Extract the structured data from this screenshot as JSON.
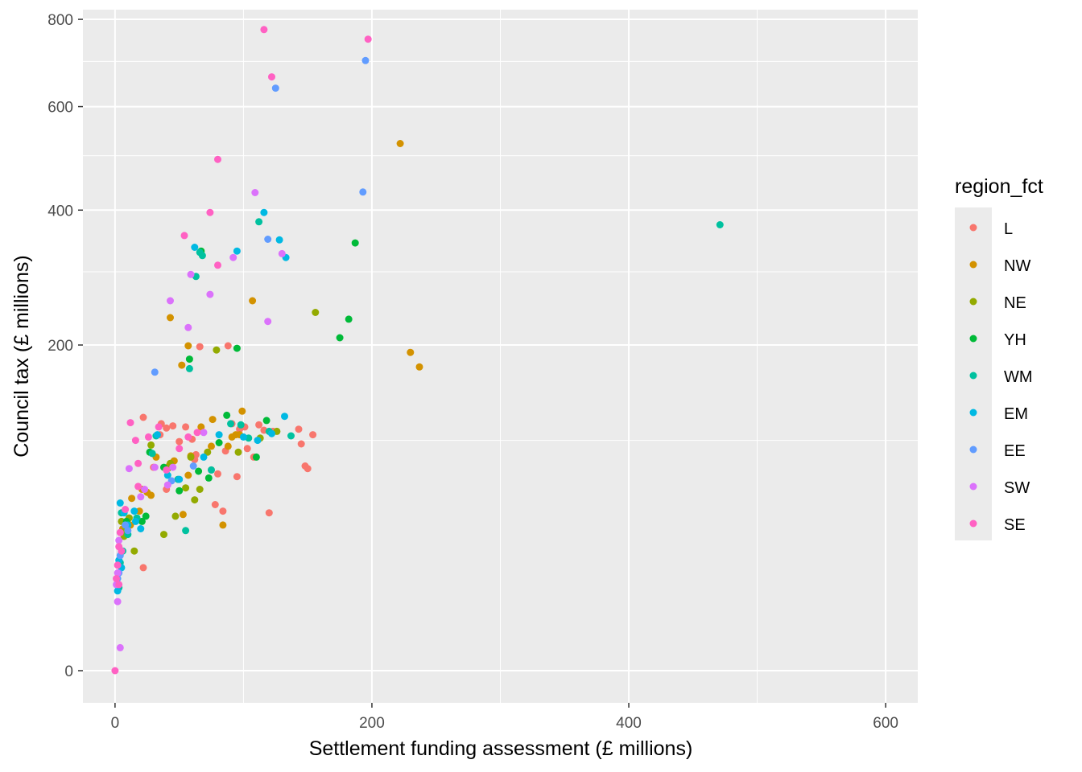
{
  "chart_data": {
    "type": "scatter",
    "title": "",
    "xlabel": "Settlement funding assessment (£ millions)",
    "ylabel": "Council tax (£ millions)",
    "x_scale": "linear",
    "y_scale": "sqrt",
    "xlim": [
      -25,
      625
    ],
    "ylim": [
      0,
      824
    ],
    "x_ticks": [
      0,
      200,
      400,
      600
    ],
    "x_tick_labels": [
      "0",
      "200",
      "400",
      "600"
    ],
    "y_ticks": [
      0,
      200,
      400,
      600,
      800
    ],
    "y_tick_labels": [
      "0",
      "200",
      "400",
      "600",
      "800"
    ],
    "grid": true,
    "panel_background": "#EBEBEB",
    "legend": {
      "title": "region_fct",
      "placement": "right",
      "items": [
        {
          "key": "L",
          "color": "#F8766D"
        },
        {
          "key": "NW",
          "color": "#D39200"
        },
        {
          "key": "NE",
          "color": "#93AA00"
        },
        {
          "key": "YH",
          "color": "#00BA38"
        },
        {
          "key": "WM",
          "color": "#00C19F"
        },
        {
          "key": "EM",
          "color": "#00B9E3"
        },
        {
          "key": "EE",
          "color": "#619CFF"
        },
        {
          "key": "SW",
          "color": "#DB72FB"
        },
        {
          "key": "SE",
          "color": "#FF61C3"
        }
      ]
    },
    "series": [
      {
        "name": "L",
        "points": [
          [
            22,
            121
          ],
          [
            36,
            115
          ],
          [
            40,
            111
          ],
          [
            45,
            113
          ],
          [
            55,
            112
          ],
          [
            60,
            101
          ],
          [
            66,
            198
          ],
          [
            88,
            199
          ],
          [
            91,
            115
          ],
          [
            97,
            110
          ],
          [
            101,
            112
          ],
          [
            112,
            114
          ],
          [
            116,
            109
          ],
          [
            120,
            47
          ],
          [
            123,
            108
          ],
          [
            143,
            110
          ],
          [
            145,
            97
          ],
          [
            148,
            79
          ],
          [
            150,
            77
          ],
          [
            154,
            105
          ],
          [
            35,
            105
          ],
          [
            50,
            99
          ],
          [
            63,
            88
          ],
          [
            75,
            76
          ],
          [
            80,
            73
          ],
          [
            95,
            71
          ],
          [
            86,
            91
          ],
          [
            103,
            93
          ],
          [
            108,
            86
          ],
          [
            22,
            20
          ],
          [
            30,
            78
          ],
          [
            40,
            62
          ],
          [
            62,
            84
          ],
          [
            78,
            52
          ],
          [
            84,
            48
          ]
        ]
      },
      {
        "name": "NW",
        "points": [
          [
            43,
            235
          ],
          [
            52,
            176
          ],
          [
            57,
            199
          ],
          [
            76,
            119
          ],
          [
            91,
            103
          ],
          [
            94,
            105
          ],
          [
            99,
            127
          ],
          [
            107,
            258
          ],
          [
            222,
            524
          ],
          [
            230,
            191
          ],
          [
            237,
            174
          ],
          [
            25,
            60
          ],
          [
            32,
            86
          ],
          [
            42,
            79
          ],
          [
            46,
            83
          ],
          [
            53,
            46
          ],
          [
            57,
            72
          ],
          [
            59,
            87
          ],
          [
            67,
            112
          ],
          [
            75,
            95
          ],
          [
            84,
            40
          ],
          [
            88,
            95
          ],
          [
            97,
            105
          ],
          [
            13,
            56
          ],
          [
            19,
            48
          ],
          [
            12,
            40
          ],
          [
            9,
            42
          ],
          [
            6,
            38
          ],
          [
            21,
            62
          ],
          [
            28,
            58
          ]
        ]
      },
      {
        "name": "NE",
        "points": [
          [
            38,
            35
          ],
          [
            43,
            81
          ],
          [
            59,
            86
          ],
          [
            72,
            90
          ],
          [
            79,
            194
          ],
          [
            96,
            90
          ],
          [
            113,
            102
          ],
          [
            126,
            108
          ],
          [
            156,
            242
          ],
          [
            28,
            96
          ],
          [
            41,
            77
          ],
          [
            47,
            45
          ],
          [
            55,
            63
          ],
          [
            62,
            55
          ],
          [
            66,
            62
          ],
          [
            8,
            37
          ],
          [
            15,
            27
          ],
          [
            11,
            44
          ],
          [
            7,
            34
          ],
          [
            5,
            42
          ]
        ]
      },
      {
        "name": "YH",
        "points": [
          [
            27,
            90
          ],
          [
            38,
            78
          ],
          [
            50,
            61
          ],
          [
            58,
            183
          ],
          [
            67,
            332
          ],
          [
            81,
            98
          ],
          [
            87,
            123
          ],
          [
            95,
            196
          ],
          [
            110,
            86
          ],
          [
            118,
            118
          ],
          [
            175,
            209
          ],
          [
            182,
            233
          ],
          [
            187,
            345
          ],
          [
            65,
            75
          ],
          [
            73,
            70
          ],
          [
            21,
            42
          ],
          [
            24,
            45
          ],
          [
            9,
            42
          ]
        ]
      },
      {
        "name": "WM",
        "points": [
          [
            55,
            37
          ],
          [
            58,
            172
          ],
          [
            63,
            293
          ],
          [
            66,
            330
          ],
          [
            68,
            325
          ],
          [
            75,
            76
          ],
          [
            90,
            115
          ],
          [
            98,
            114
          ],
          [
            104,
            102
          ],
          [
            112,
            380
          ],
          [
            120,
            108
          ],
          [
            137,
            104
          ],
          [
            471,
            375
          ],
          [
            49,
            69
          ],
          [
            29,
            89
          ],
          [
            32,
            104
          ],
          [
            17,
            44
          ],
          [
            10,
            35
          ],
          [
            6,
            27
          ],
          [
            4,
            22
          ],
          [
            5,
            47
          ],
          [
            3,
            13
          ]
        ]
      },
      {
        "name": "EM",
        "points": [
          [
            33,
            105
          ],
          [
            50,
            69
          ],
          [
            62,
            338
          ],
          [
            69,
            86
          ],
          [
            81,
            105
          ],
          [
            95,
            332
          ],
          [
            100,
            103
          ],
          [
            111,
            100
          ],
          [
            116,
            396
          ],
          [
            122,
            106
          ],
          [
            128,
            350
          ],
          [
            132,
            122
          ],
          [
            133,
            322
          ],
          [
            41,
            72
          ],
          [
            15,
            48
          ],
          [
            16,
            42
          ],
          [
            20,
            38
          ],
          [
            4,
            53
          ],
          [
            7,
            47
          ],
          [
            10,
            40
          ],
          [
            3,
            23
          ],
          [
            2,
            12
          ],
          [
            5,
            20
          ]
        ]
      },
      {
        "name": "EE",
        "points": [
          [
            31,
            168
          ],
          [
            44,
            68
          ],
          [
            61,
            79
          ],
          [
            119,
            351
          ],
          [
            125,
            640
          ],
          [
            193,
            432
          ],
          [
            195,
            702
          ],
          [
            8,
            40
          ],
          [
            10,
            37
          ],
          [
            4,
            25
          ],
          [
            3,
            18
          ],
          [
            2,
            16
          ]
        ]
      },
      {
        "name": "SW",
        "points": [
          [
            11,
            77
          ],
          [
            20,
            57
          ],
          [
            23,
            62
          ],
          [
            31,
            78
          ],
          [
            41,
            65
          ],
          [
            43,
            258
          ],
          [
            45,
            78
          ],
          [
            57,
            222
          ],
          [
            59,
            296
          ],
          [
            69,
            107
          ],
          [
            74,
            267
          ],
          [
            92,
            322
          ],
          [
            109,
            431
          ],
          [
            119,
            230
          ],
          [
            130,
            328
          ],
          [
            1,
            14
          ],
          [
            2,
            18
          ],
          [
            4,
            1
          ],
          [
            3,
            32
          ],
          [
            2,
            9
          ]
        ]
      },
      {
        "name": "SE",
        "points": [
          [
            0,
            0
          ],
          [
            12,
            116
          ],
          [
            16,
            100
          ],
          [
            18,
            81
          ],
          [
            26,
            103
          ],
          [
            34,
            112
          ],
          [
            40,
            76
          ],
          [
            50,
            93
          ],
          [
            54,
            357
          ],
          [
            57,
            103
          ],
          [
            64,
            107
          ],
          [
            74,
            396
          ],
          [
            80,
            310
          ],
          [
            80,
            493
          ],
          [
            116,
            775
          ],
          [
            122,
            665
          ],
          [
            197,
            752
          ],
          [
            18,
            64
          ],
          [
            8,
            49
          ],
          [
            4,
            36
          ],
          [
            3,
            29
          ],
          [
            2,
            21
          ],
          [
            1,
            16
          ],
          [
            3,
            14
          ],
          [
            5,
            27
          ]
        ]
      }
    ]
  }
}
